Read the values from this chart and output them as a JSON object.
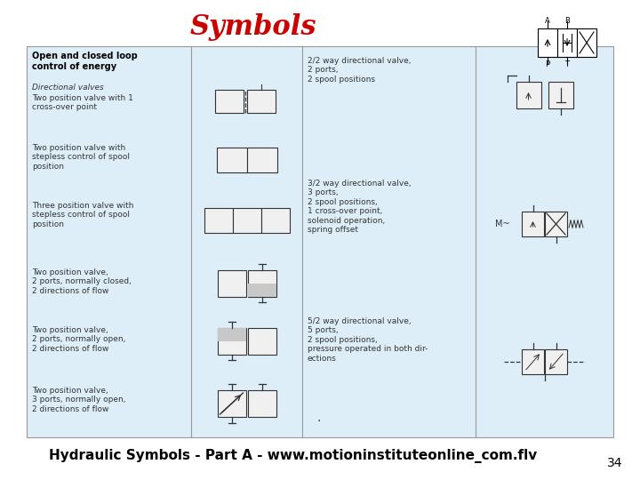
{
  "title": "Symbols",
  "title_color": "#cc0000",
  "title_fontsize": 22,
  "bg_color": "#ffffff",
  "slide_number": "34",
  "footer_text": "Hydraulic Symbols - Part A - www.motioninstituteonline_com.flv",
  "footer_fontsize": 11,
  "panel_bg": "#ddeef8",
  "panel_border": "#999999",
  "left_panel_header_bold": "Open and closed loop\ncontrol of energy",
  "left_items": [
    [
      "Directional valves",
      "Two position valve with 1\ncross-over point"
    ],
    [
      "Two position valve with\nstepless control of spool\nposition"
    ],
    [
      "Three position valve with\nstepless control of spool\nposition"
    ],
    [
      "Two position valve,\n2 ports, normally closed,\n2 directions of flow"
    ],
    [
      "Two position valve,\n2 ports, normally open,\n2 directions of flow"
    ],
    [
      "Two position valve,\n3 ports, normally open,\n2 directions of flow"
    ]
  ],
  "right_items": [
    [
      "2/2 way directional valve,\n2 ports,\n2 spool positions"
    ],
    [
      "3/2 way directional valve,\n3 ports,\n2 spool positions,\n1 cross-over point,\nsolenoid operation,\nspring offset"
    ],
    [
      "5/2 way directional valve,\n5 ports,\n2 spool positions,\npressure operated in both dir-\nections"
    ]
  ],
  "text_color": "#333333",
  "symbol_color": "#333333"
}
